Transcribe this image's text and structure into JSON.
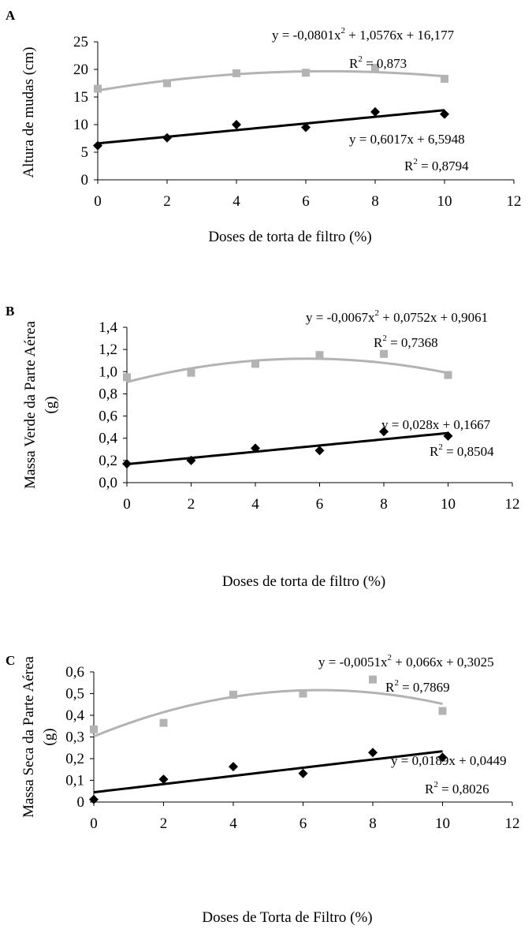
{
  "chart_data": [
    {
      "type": "scatter",
      "panel_label": "A",
      "xlabel": "Doses de torta de filtro (%)",
      "ylabel": "Altura de mudas (cm)",
      "xlim": [
        0,
        12
      ],
      "ylim": [
        0,
        25
      ],
      "xticks": [
        0,
        2,
        4,
        6,
        8,
        10,
        12
      ],
      "yticks": [
        0,
        5,
        10,
        15,
        20,
        25
      ],
      "ytick_labels": [
        "0",
        "5",
        "10",
        "15",
        "20",
        "25"
      ],
      "grid": false,
      "series": [
        {
          "marker": "square",
          "color": "#b3b3b3",
          "x": [
            0,
            2,
            4,
            6,
            8,
            10
          ],
          "y": [
            16.5,
            17.5,
            19.3,
            19.4,
            20.3,
            18.3
          ],
          "trendline": {
            "type": "poly2",
            "coef": [
              -0.0801,
              1.0576,
              16.177
            ]
          },
          "equation": "y = -0,0801x",
          "equation_sup": "2",
          "equation_rest": " + 1,0576x + 16,177",
          "r2_label": "R",
          "r2_sup": "2",
          "r2_value": " = 0,873"
        },
        {
          "marker": "diamond",
          "color": "#000000",
          "x": [
            0,
            2,
            4,
            6,
            8,
            10
          ],
          "y": [
            6.2,
            7.6,
            10.0,
            9.5,
            12.3,
            11.9
          ],
          "trendline": {
            "type": "linear",
            "coef": [
              0.6017,
              6.5948
            ]
          },
          "equation": "y = 0,6017x + 6,5948",
          "equation_sup": "",
          "equation_rest": "",
          "r2_label": "R",
          "r2_sup": "2",
          "r2_value": " = 0,8794"
        }
      ]
    },
    {
      "type": "scatter",
      "panel_label": "B",
      "xlabel": "Doses de torta de filtro (%)",
      "ylabel": "Massa Verde da Parte Aérea (g)",
      "ylabel_line1": "Massa Verde da Parte Aérea",
      "ylabel_line2": "(g)",
      "xlim": [
        0,
        12
      ],
      "ylim": [
        0,
        1.4
      ],
      "xticks": [
        0,
        2,
        4,
        6,
        8,
        10,
        12
      ],
      "yticks": [
        0,
        0.2,
        0.4,
        0.6,
        0.8,
        1.0,
        1.2,
        1.4
      ],
      "ytick_labels": [
        "0,0",
        "0,2",
        "0,4",
        "0,6",
        "0,8",
        "1,0",
        "1,2",
        "1,4"
      ],
      "grid": false,
      "series": [
        {
          "marker": "square",
          "color": "#b3b3b3",
          "x": [
            0,
            2,
            4,
            6,
            8,
            10
          ],
          "y": [
            0.95,
            0.99,
            1.07,
            1.15,
            1.16,
            0.97
          ],
          "trendline": {
            "type": "poly2",
            "coef": [
              -0.0067,
              0.0752,
              0.9061
            ]
          },
          "equation": "y = -0,0067x",
          "equation_sup": "2",
          "equation_rest": " + 0,0752x + 0,9061",
          "r2_label": "R",
          "r2_sup": "2",
          "r2_value": " = 0,7368"
        },
        {
          "marker": "diamond",
          "color": "#000000",
          "x": [
            0,
            2,
            4,
            6,
            8,
            10
          ],
          "y": [
            0.17,
            0.2,
            0.31,
            0.29,
            0.46,
            0.42
          ],
          "trendline": {
            "type": "linear",
            "coef": [
              0.028,
              0.1667
            ]
          },
          "equation": "y = 0,028x + 0,1667",
          "equation_sup": "",
          "equation_rest": "",
          "r2_label": "R",
          "r2_sup": "2",
          "r2_value": " = 0,8504"
        }
      ]
    },
    {
      "type": "scatter",
      "panel_label": "C",
      "xlabel": "Doses de Torta de Filtro (%)",
      "ylabel": "Massa Seca da Parte Aérea (g)",
      "ylabel_line1": "Massa Seca da Parte Aérea",
      "ylabel_line2": "(g)",
      "xlim": [
        0,
        12
      ],
      "ylim": [
        0,
        0.6
      ],
      "xticks": [
        0,
        2,
        4,
        6,
        8,
        10,
        12
      ],
      "yticks": [
        0,
        0.1,
        0.2,
        0.3,
        0.4,
        0.5,
        0.6
      ],
      "ytick_labels": [
        "0",
        "0,1",
        "0,2",
        "0,3",
        "0,4",
        "0,5",
        "0,6"
      ],
      "grid": false,
      "series": [
        {
          "marker": "square",
          "color": "#b3b3b3",
          "x": [
            0,
            2,
            4,
            6,
            8,
            10
          ],
          "y": [
            0.335,
            0.365,
            0.495,
            0.5,
            0.565,
            0.42
          ],
          "trendline": {
            "type": "poly2",
            "coef": [
              -0.0051,
              0.066,
              0.3025
            ]
          },
          "equation": "y = -0,0051x",
          "equation_sup": "2",
          "equation_rest": " + 0,066x + 0,3025",
          "r2_label": "R",
          "r2_sup": "2",
          "r2_value": " = 0,7869"
        },
        {
          "marker": "diamond",
          "color": "#000000",
          "x": [
            0,
            2,
            4,
            6,
            8,
            10
          ],
          "y": [
            0.012,
            0.105,
            0.163,
            0.132,
            0.228,
            0.206
          ],
          "trendline": {
            "type": "linear",
            "coef": [
              0.0189,
              0.0449
            ]
          },
          "equation": "y = 0,0189x + 0,0449",
          "equation_sup": "",
          "equation_rest": "",
          "r2_label": "R",
          "r2_sup": "2",
          "r2_value": " = 0,8026"
        }
      ]
    }
  ]
}
